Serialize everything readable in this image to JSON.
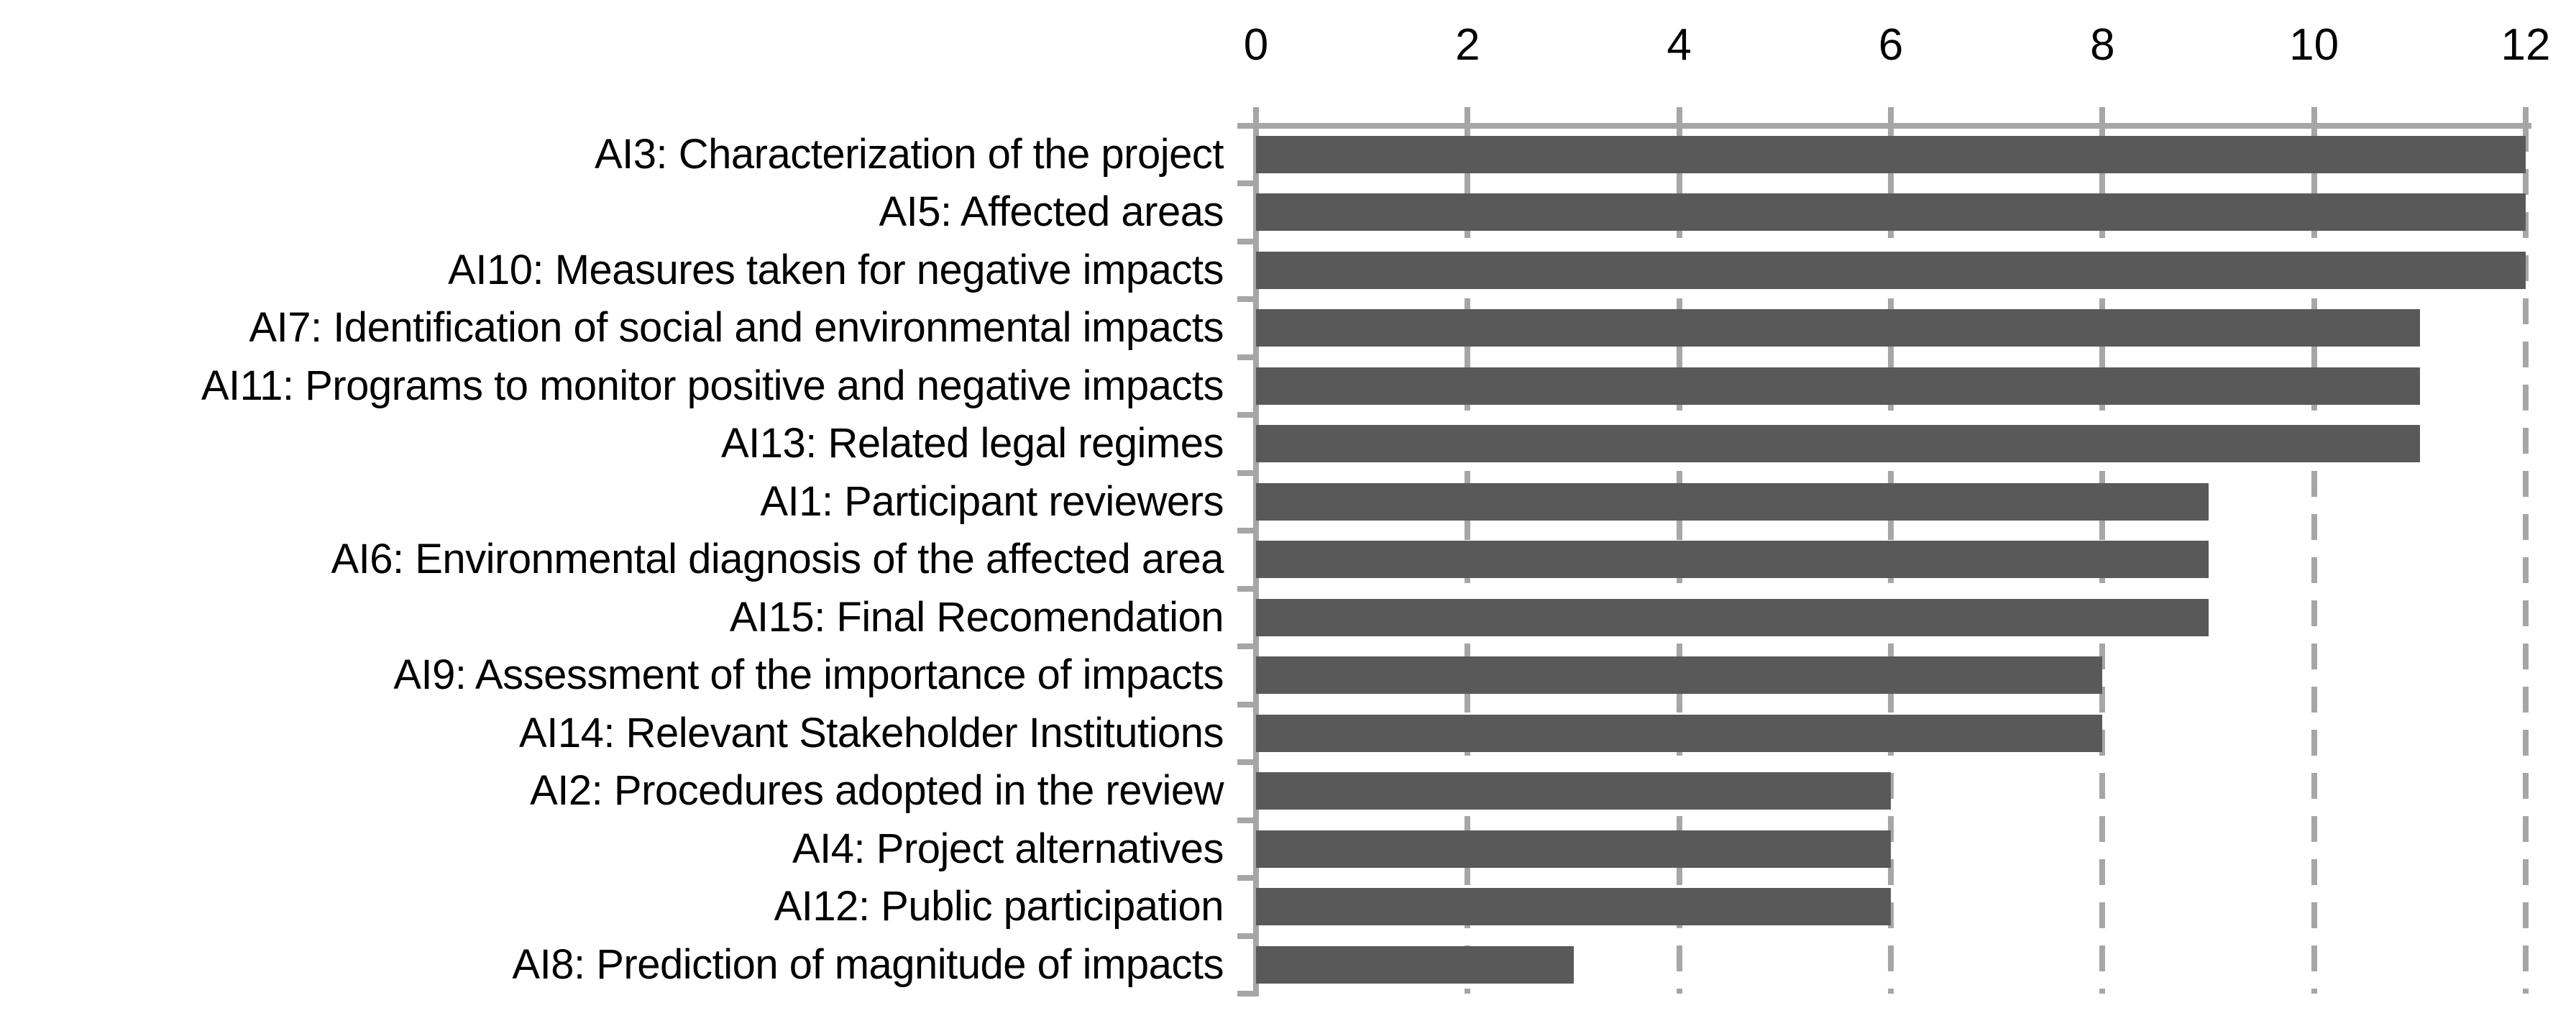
{
  "chart_data": {
    "type": "bar",
    "orientation": "horizontal",
    "title": "",
    "xlabel": "",
    "ylabel": "",
    "categories": [
      "AI3: Characterization of the project",
      "AI5: Affected areas",
      "AI10: Measures taken for negative impacts",
      "AI7: Identification of social and environmental impacts",
      "AI11: Programs to monitor positive and negative impacts",
      "AI13: Related legal regimes",
      "AI1: Participant reviewers",
      "AI6: Environmental diagnosis of the affected area",
      "AI15: Final Recomendation",
      "AI9: Assessment of the importance of impacts",
      "AI14: Relevant Stakeholder Institutions",
      "AI2: Procedures adopted in the review",
      "AI4: Project alternatives",
      "AI12: Public participation",
      "AI8: Prediction of magnitude of impacts"
    ],
    "values": [
      12,
      12,
      12,
      11,
      11,
      11,
      9,
      9,
      9,
      8,
      8,
      6,
      6,
      6,
      3
    ],
    "xlim": [
      0,
      12
    ],
    "x_ticks": [
      0,
      2,
      4,
      6,
      8,
      10,
      12
    ],
    "x_tick_labels": [
      "0",
      "2",
      "4",
      "6",
      "8",
      "10",
      "12"
    ],
    "grid": "vertical-dashed",
    "legend": "none",
    "axis_position": "top",
    "bar_color": "#595959",
    "axis_color": "#A6A6A6",
    "text_color": "#000000"
  }
}
